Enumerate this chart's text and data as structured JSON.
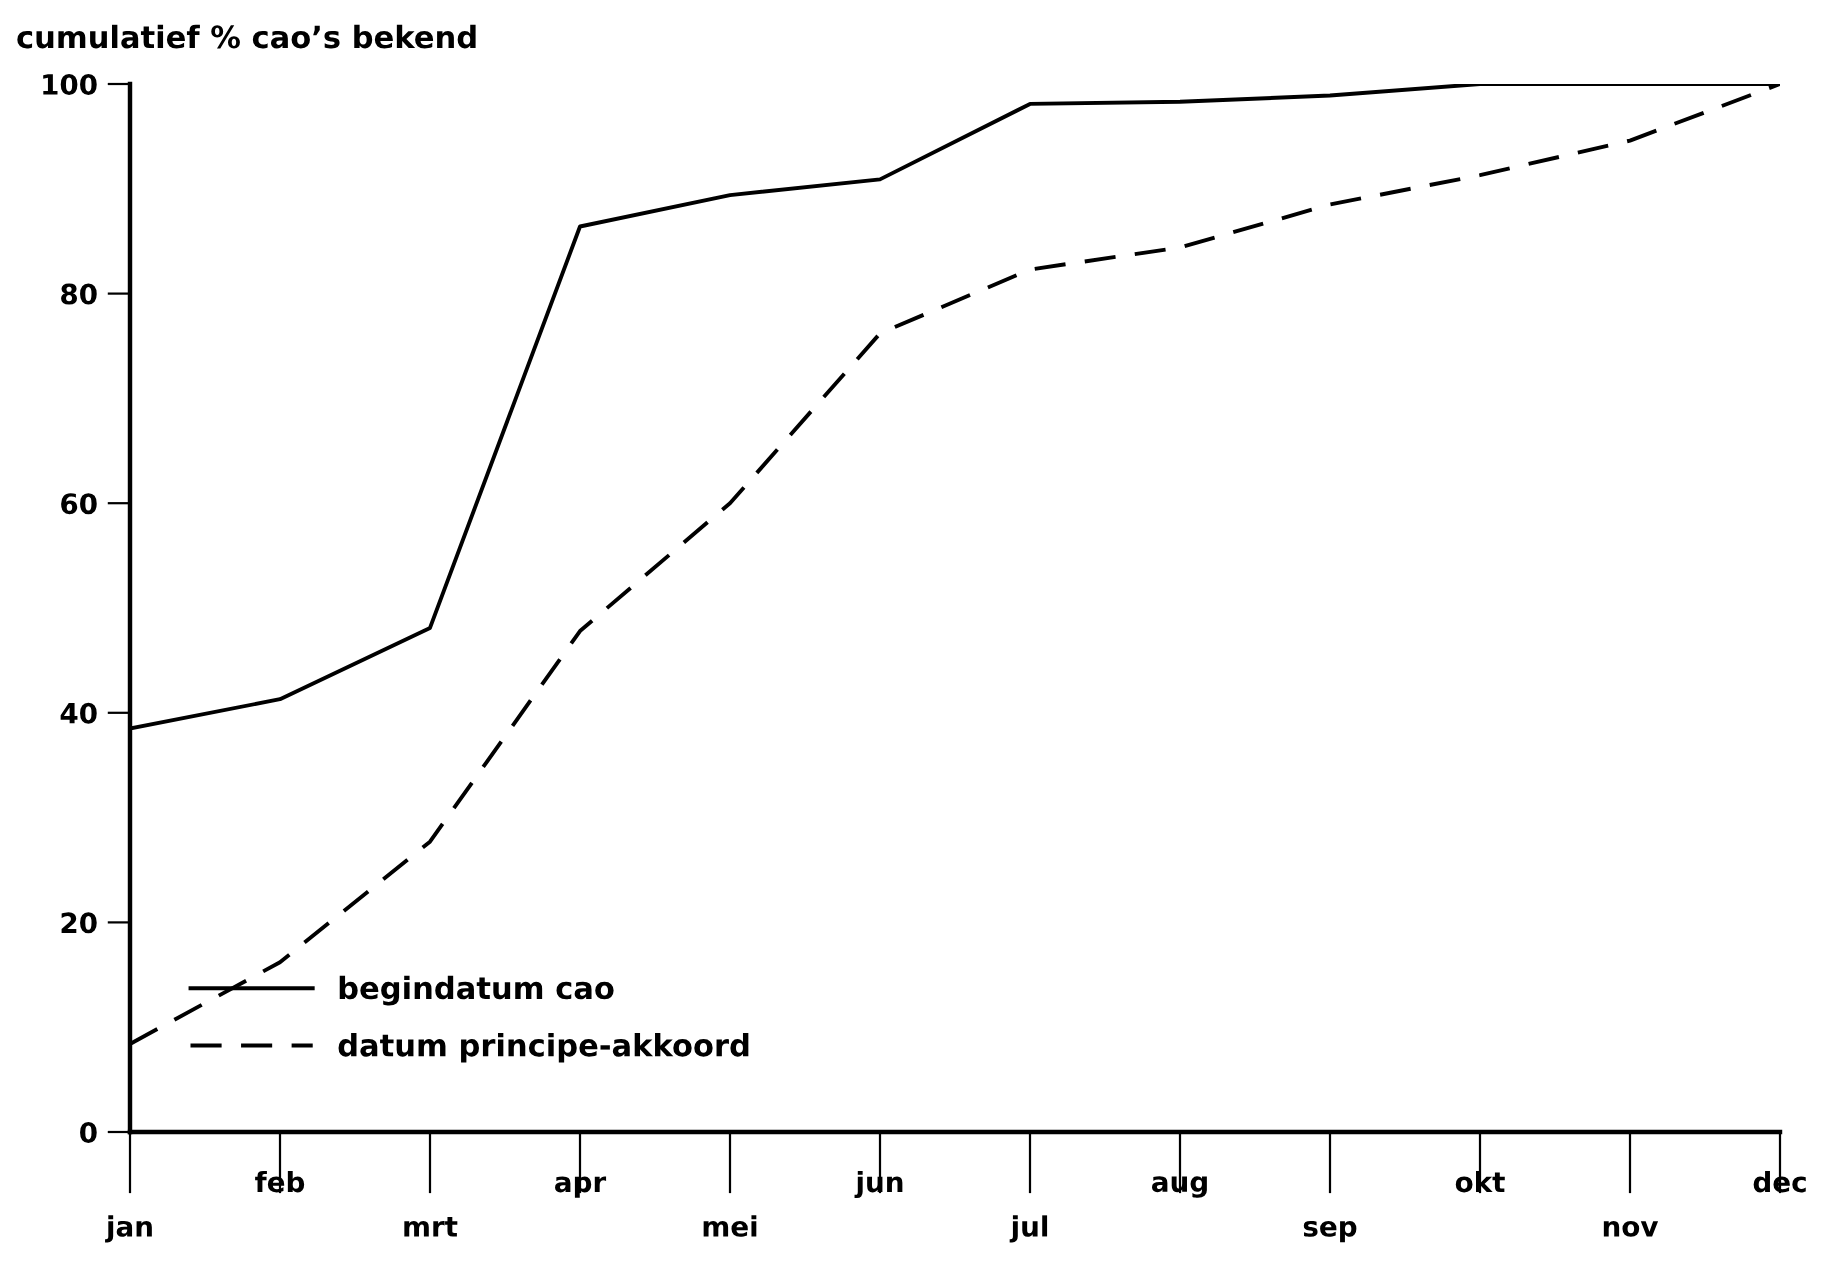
{
  "chart_data": {
    "type": "line",
    "ylabel": "cumulatief % cao’s bekend",
    "categories": [
      "jan",
      "feb",
      "mrt",
      "apr",
      "mei",
      "jun",
      "jul",
      "aug",
      "sep",
      "okt",
      "nov",
      "dec"
    ],
    "series": [
      {
        "name": "begindatum cao",
        "color": "#000000",
        "line_style": "solid",
        "values": [
          38.5,
          41.3,
          48.1,
          86.4,
          89.4,
          90.9,
          98.1,
          98.3,
          98.9,
          100,
          100,
          100
        ]
      },
      {
        "name": "datum principe-akkoord",
        "color": "#000000",
        "line_style": "dashed",
        "values": [
          8.4,
          16.2,
          27.7,
          47.8,
          60,
          76.2,
          82.3,
          84.4,
          88.5,
          91.3,
          94.6,
          100
        ]
      }
    ],
    "ylim": [
      0,
      100
    ],
    "yticks": [
      0,
      20,
      40,
      60,
      80,
      100
    ],
    "grid": false,
    "legend": "bottom left",
    "marker": "none"
  }
}
